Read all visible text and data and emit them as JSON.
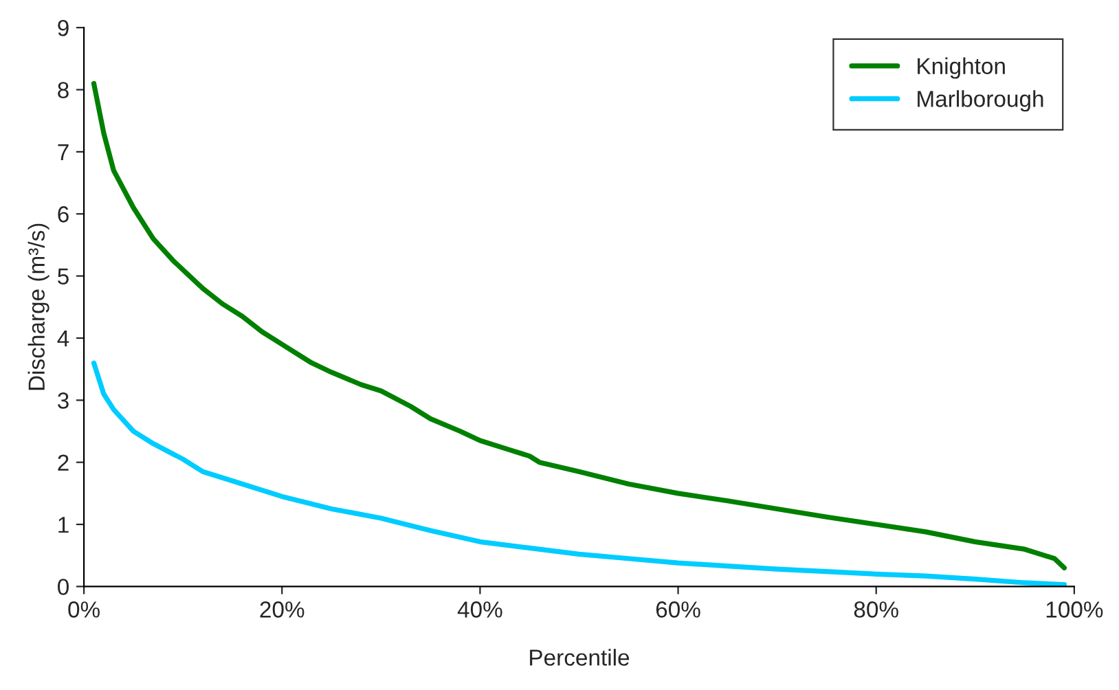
{
  "chart_data": {
    "type": "line",
    "xlabel": "Percentile",
    "ylabel": "Discharge (m³/s)",
    "xlim": [
      0,
      100
    ],
    "ylim": [
      0,
      9
    ],
    "xticks": [
      {
        "value": 0,
        "label": "0%"
      },
      {
        "value": 20,
        "label": "20%"
      },
      {
        "value": 40,
        "label": "40%"
      },
      {
        "value": 60,
        "label": "60%"
      },
      {
        "value": 80,
        "label": "80%"
      },
      {
        "value": 100,
        "label": "100%"
      }
    ],
    "yticks": [
      0,
      1,
      2,
      3,
      4,
      5,
      6,
      7,
      8,
      9
    ],
    "grid": false,
    "legend": "top right",
    "marker": "none",
    "line_style": "solid",
    "series": [
      {
        "name": "Knighton",
        "color": "#008000",
        "x": [
          1,
          2,
          3,
          5,
          7,
          9,
          10,
          12,
          14,
          16,
          18,
          20,
          22,
          23,
          25,
          28,
          30,
          33,
          35,
          38,
          40,
          43,
          45,
          46,
          50,
          55,
          60,
          65,
          70,
          75,
          80,
          85,
          90,
          95,
          98,
          99
        ],
        "values": [
          8.1,
          7.3,
          6.7,
          6.1,
          5.6,
          5.25,
          5.1,
          4.8,
          4.55,
          4.35,
          4.1,
          3.9,
          3.7,
          3.6,
          3.45,
          3.25,
          3.15,
          2.9,
          2.7,
          2.5,
          2.35,
          2.2,
          2.1,
          2.0,
          1.85,
          1.65,
          1.5,
          1.38,
          1.25,
          1.12,
          1.0,
          0.88,
          0.72,
          0.6,
          0.45,
          0.3
        ]
      },
      {
        "name": "Marlborough",
        "color": "#00ccff",
        "x": [
          1,
          2,
          3,
          5,
          7,
          10,
          12,
          15,
          20,
          23,
          25,
          30,
          35,
          40,
          45,
          50,
          55,
          60,
          65,
          70,
          75,
          80,
          85,
          90,
          95,
          99
        ],
        "values": [
          3.6,
          3.1,
          2.85,
          2.5,
          2.3,
          2.05,
          1.85,
          1.7,
          1.45,
          1.33,
          1.25,
          1.1,
          0.9,
          0.72,
          0.62,
          0.52,
          0.45,
          0.38,
          0.33,
          0.28,
          0.24,
          0.2,
          0.17,
          0.12,
          0.06,
          0.03
        ]
      }
    ]
  }
}
